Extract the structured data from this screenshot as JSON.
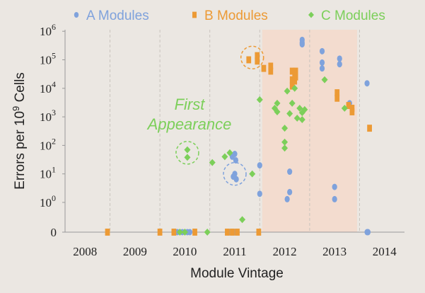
{
  "chart_data": {
    "type": "scatter",
    "xlabel": "Module Vintage",
    "ylabel_main": "Errors per 10",
    "ylabel_exp": "9",
    "ylabel_tail": " Cells",
    "x_ticks": [
      "2008",
      "2009",
      "2010",
      "2011",
      "2012",
      "2013",
      "2014"
    ],
    "y_ticks": [
      {
        "value": 0,
        "label": "0",
        "exp": ""
      },
      {
        "value": 1,
        "label": "10",
        "exp": "0"
      },
      {
        "value": 10,
        "label": "10",
        "exp": "1"
      },
      {
        "value": 100,
        "label": "10",
        "exp": "2"
      },
      {
        "value": 1000,
        "label": "10",
        "exp": "3"
      },
      {
        "value": 10000,
        "label": "10",
        "exp": "4"
      },
      {
        "value": 100000,
        "label": "10",
        "exp": "5"
      },
      {
        "value": 1000000,
        "label": "10",
        "exp": "6"
      }
    ],
    "xlim": [
      2007.6,
      2014.4
    ],
    "y_scale": "log with zero baseline",
    "shaded_region": {
      "x0": 2011.55,
      "x1": 2013.45,
      "color": "#f3dccf"
    },
    "grid": "vertical dashed at year boundaries",
    "legend_position": "top",
    "annotation": [
      "First",
      "Appearance"
    ],
    "highlight_circles": [
      {
        "series": "C Modules",
        "x": 2010.05,
        "y": 55
      },
      {
        "series": "A Modules",
        "x": 2011.0,
        "y": 10
      },
      {
        "series": "B Modules",
        "x": 2011.35,
        "y": 120000
      }
    ],
    "series": [
      {
        "name": "A Modules",
        "color": "#7fa2dc",
        "marker": "circle",
        "points": [
          [
            2009.85,
            0
          ],
          [
            2009.95,
            0
          ],
          [
            2010.05,
            0
          ],
          [
            2010.1,
            0
          ],
          [
            2010.9,
            0
          ],
          [
            2011.0,
            0
          ],
          [
            2010.95,
            40
          ],
          [
            2011.0,
            50
          ],
          [
            2011.02,
            30
          ],
          [
            2011.0,
            10
          ],
          [
            2010.97,
            8
          ],
          [
            2011.03,
            6.5
          ],
          [
            2011.5,
            20
          ],
          [
            2011.5,
            2
          ],
          [
            2012.05,
            1.3
          ],
          [
            2012.1,
            2.3
          ],
          [
            2012.1,
            12
          ],
          [
            2012.35,
            500000
          ],
          [
            2012.35,
            400000
          ],
          [
            2012.35,
            350000
          ],
          [
            2012.75,
            200000
          ],
          [
            2012.75,
            80000
          ],
          [
            2012.75,
            50000
          ],
          [
            2013.0,
            1.3
          ],
          [
            2013.0,
            3.5
          ],
          [
            2013.1,
            110000
          ],
          [
            2013.1,
            70000
          ],
          [
            2013.3,
            3000
          ],
          [
            2013.65,
            15000
          ],
          [
            2013.65,
            0
          ],
          [
            2013.67,
            0
          ]
        ]
      },
      {
        "name": "B Modules",
        "color": "#ec9a35",
        "marker": "square",
        "points": [
          [
            2008.45,
            0
          ],
          [
            2009.5,
            0
          ],
          [
            2009.78,
            0
          ],
          [
            2010.2,
            0
          ],
          [
            2010.85,
            0
          ],
          [
            2010.95,
            0
          ],
          [
            2011.05,
            0
          ],
          [
            2011.48,
            0
          ],
          [
            2011.28,
            100000
          ],
          [
            2011.45,
            90000
          ],
          [
            2011.45,
            140000
          ],
          [
            2011.58,
            50000
          ],
          [
            2011.72,
            40000
          ],
          [
            2011.72,
            60000
          ],
          [
            2012.15,
            40000
          ],
          [
            2012.15,
            20000
          ],
          [
            2012.15,
            12000
          ],
          [
            2012.2,
            30000
          ],
          [
            2012.2,
            18000
          ],
          [
            2012.22,
            25000
          ],
          [
            2012.22,
            40000
          ],
          [
            2013.05,
            7000
          ],
          [
            2013.05,
            4500
          ],
          [
            2013.28,
            2500
          ],
          [
            2013.35,
            1500
          ],
          [
            2013.35,
            2000
          ],
          [
            2013.7,
            400
          ]
        ]
      },
      {
        "name": "C Modules",
        "color": "#7ccf5a",
        "marker": "diamond",
        "points": [
          [
            2009.9,
            0
          ],
          [
            2010.0,
            0
          ],
          [
            2010.45,
            0
          ],
          [
            2011.15,
            0.25
          ],
          [
            2010.05,
            70
          ],
          [
            2010.05,
            38
          ],
          [
            2010.55,
            25
          ],
          [
            2010.8,
            40
          ],
          [
            2010.9,
            55
          ],
          [
            2011.35,
            10
          ],
          [
            2011.5,
            4000
          ],
          [
            2011.8,
            2000
          ],
          [
            2011.85,
            3000
          ],
          [
            2011.85,
            1500
          ],
          [
            2012.0,
            400
          ],
          [
            2012.0,
            130
          ],
          [
            2012.0,
            80
          ],
          [
            2012.05,
            8000
          ],
          [
            2012.1,
            1300
          ],
          [
            2012.15,
            3000
          ],
          [
            2012.2,
            10000
          ],
          [
            2012.25,
            900
          ],
          [
            2012.3,
            2000
          ],
          [
            2012.35,
            1400
          ],
          [
            2012.35,
            800
          ],
          [
            2012.4,
            1800
          ],
          [
            2012.8,
            20000
          ],
          [
            2013.2,
            2000
          ]
        ]
      }
    ]
  }
}
